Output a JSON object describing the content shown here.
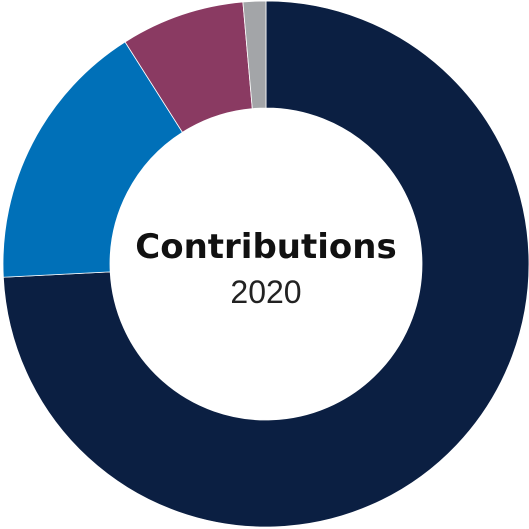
{
  "chart_data": {
    "type": "pie",
    "donut": true,
    "title": "Contributions",
    "subtitle": "2020",
    "categories": [
      "",
      "",
      "",
      ""
    ],
    "values": [
      74.2,
      16.8,
      7.6,
      1.4
    ],
    "colors": [
      "#0b1f42",
      "#0070b8",
      "#8a3a62",
      "#a3a5a8"
    ],
    "start_angle_deg": 0,
    "direction": "clockwise",
    "legend": "none"
  }
}
